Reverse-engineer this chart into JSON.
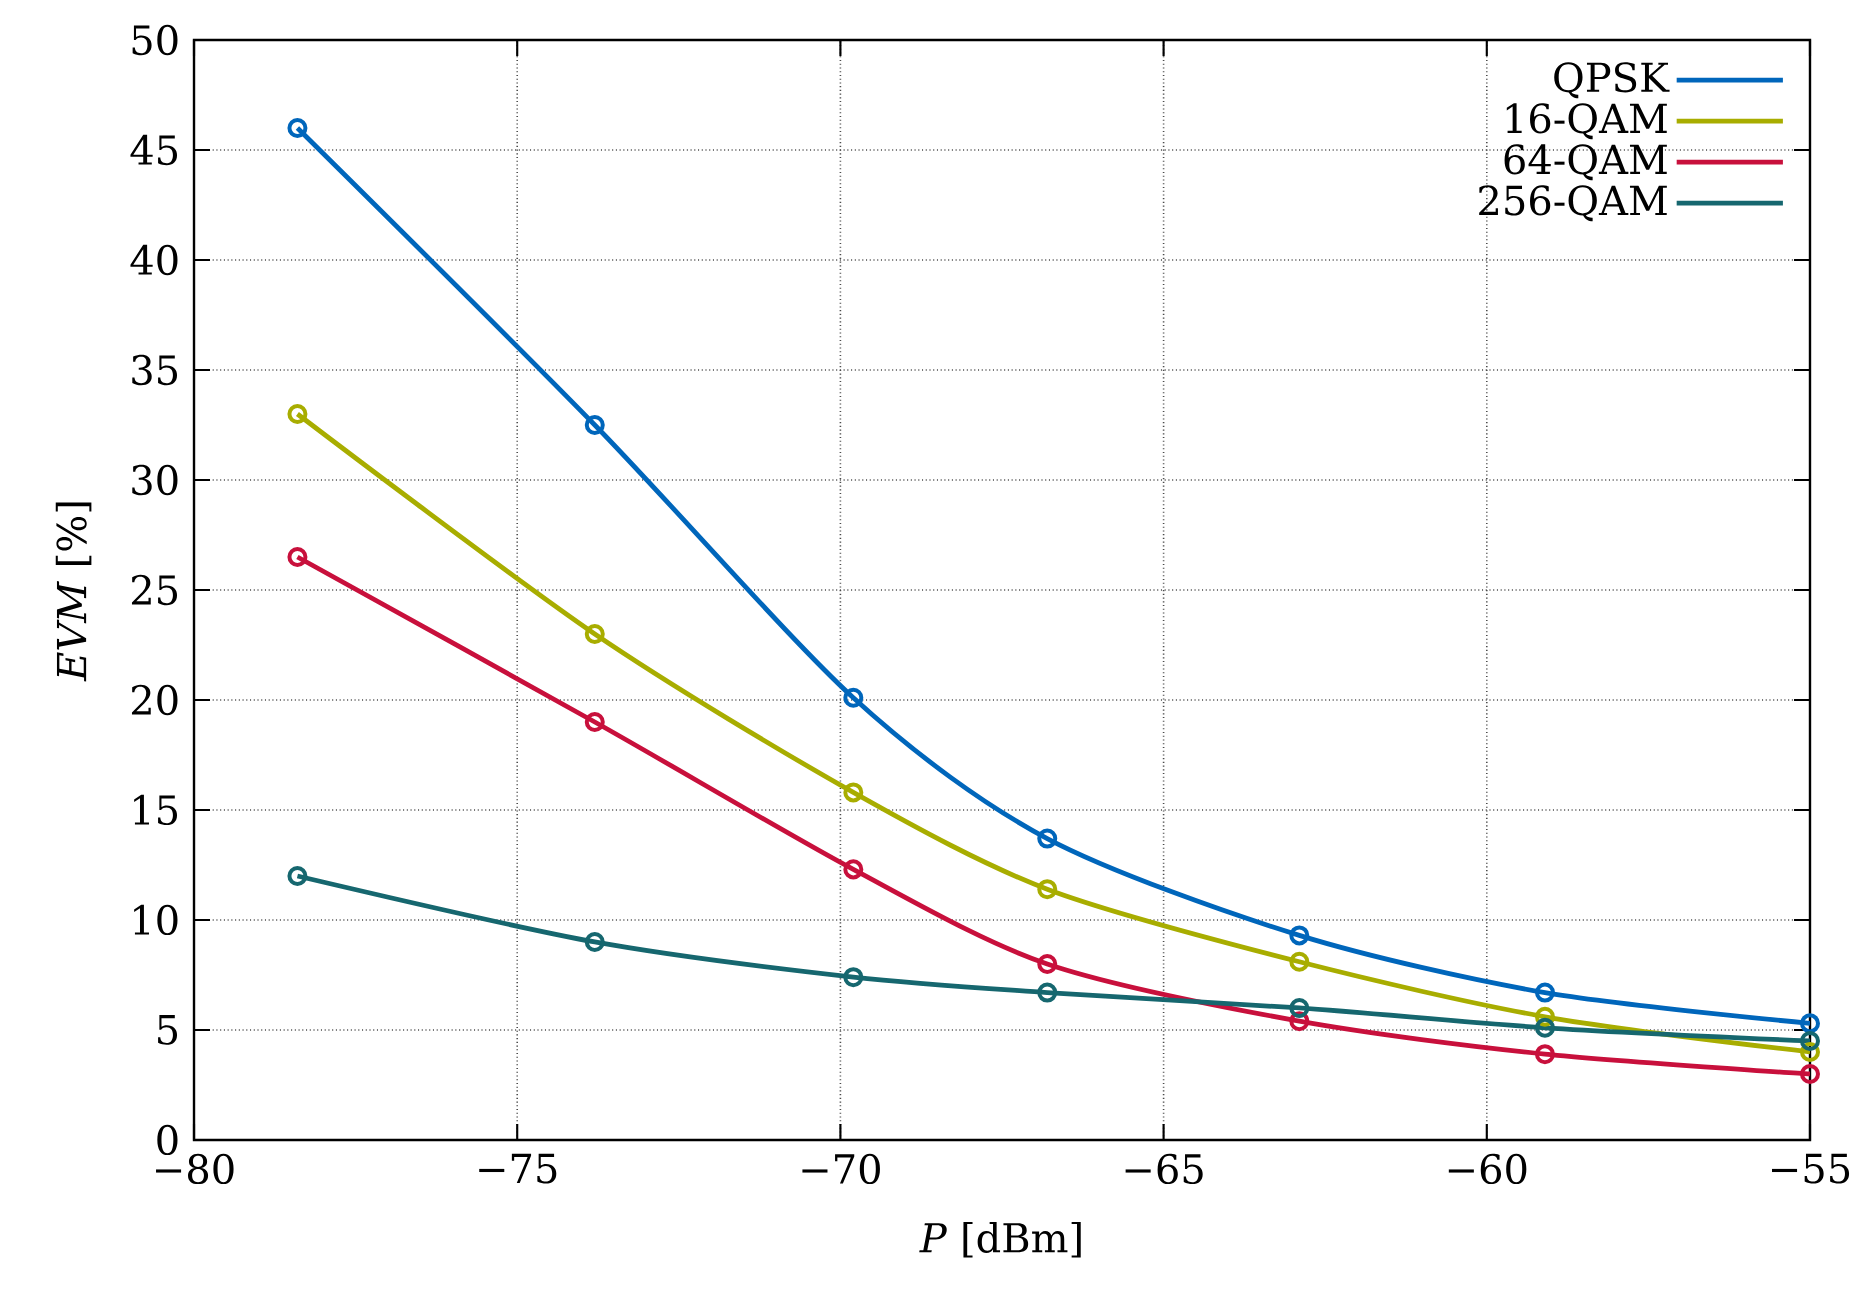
{
  "chart_data": {
    "type": "line",
    "xlabel": "*P*    [dBm]",
    "ylabel": "*EVM*    [%]",
    "x": [
      -78.4,
      -73.8,
      -69.8,
      -66.8,
      -62.9,
      -59.1,
      -55
    ],
    "series": [
      {
        "name": "QPSK",
        "color": "#0066bb",
        "values": [
          46,
          32.5,
          20.1,
          13.7,
          9.3,
          6.7,
          5.3
        ]
      },
      {
        "name": "16-QAM",
        "color": "#a8ad00",
        "values": [
          33,
          23,
          15.8,
          11.4,
          8.1,
          5.6,
          4.0
        ]
      },
      {
        "name": "64-QAM",
        "color": "#c8103c",
        "values": [
          26.5,
          19,
          12.3,
          8.0,
          5.4,
          3.9,
          3.0
        ]
      },
      {
        "name": "256-QAM",
        "color": "#16676f",
        "values": [
          12,
          9,
          7.4,
          6.7,
          6.0,
          5.1,
          4.5
        ]
      }
    ],
    "xlim": [
      -80,
      -55
    ],
    "ylim": [
      0,
      50
    ],
    "xticks": [
      {
        "value": -80,
        "label": "−80"
      },
      {
        "value": -75,
        "label": "−75"
      },
      {
        "value": -70,
        "label": "−70"
      },
      {
        "value": -65,
        "label": "−65"
      },
      {
        "value": -60,
        "label": "−60"
      },
      {
        "value": -55,
        "label": "−55"
      }
    ],
    "yticks": [
      0,
      5,
      10,
      15,
      20,
      25,
      30,
      35,
      40,
      45,
      50
    ],
    "grid": true,
    "legend": "top right",
    "marker": "circle",
    "line_style": "solid"
  }
}
